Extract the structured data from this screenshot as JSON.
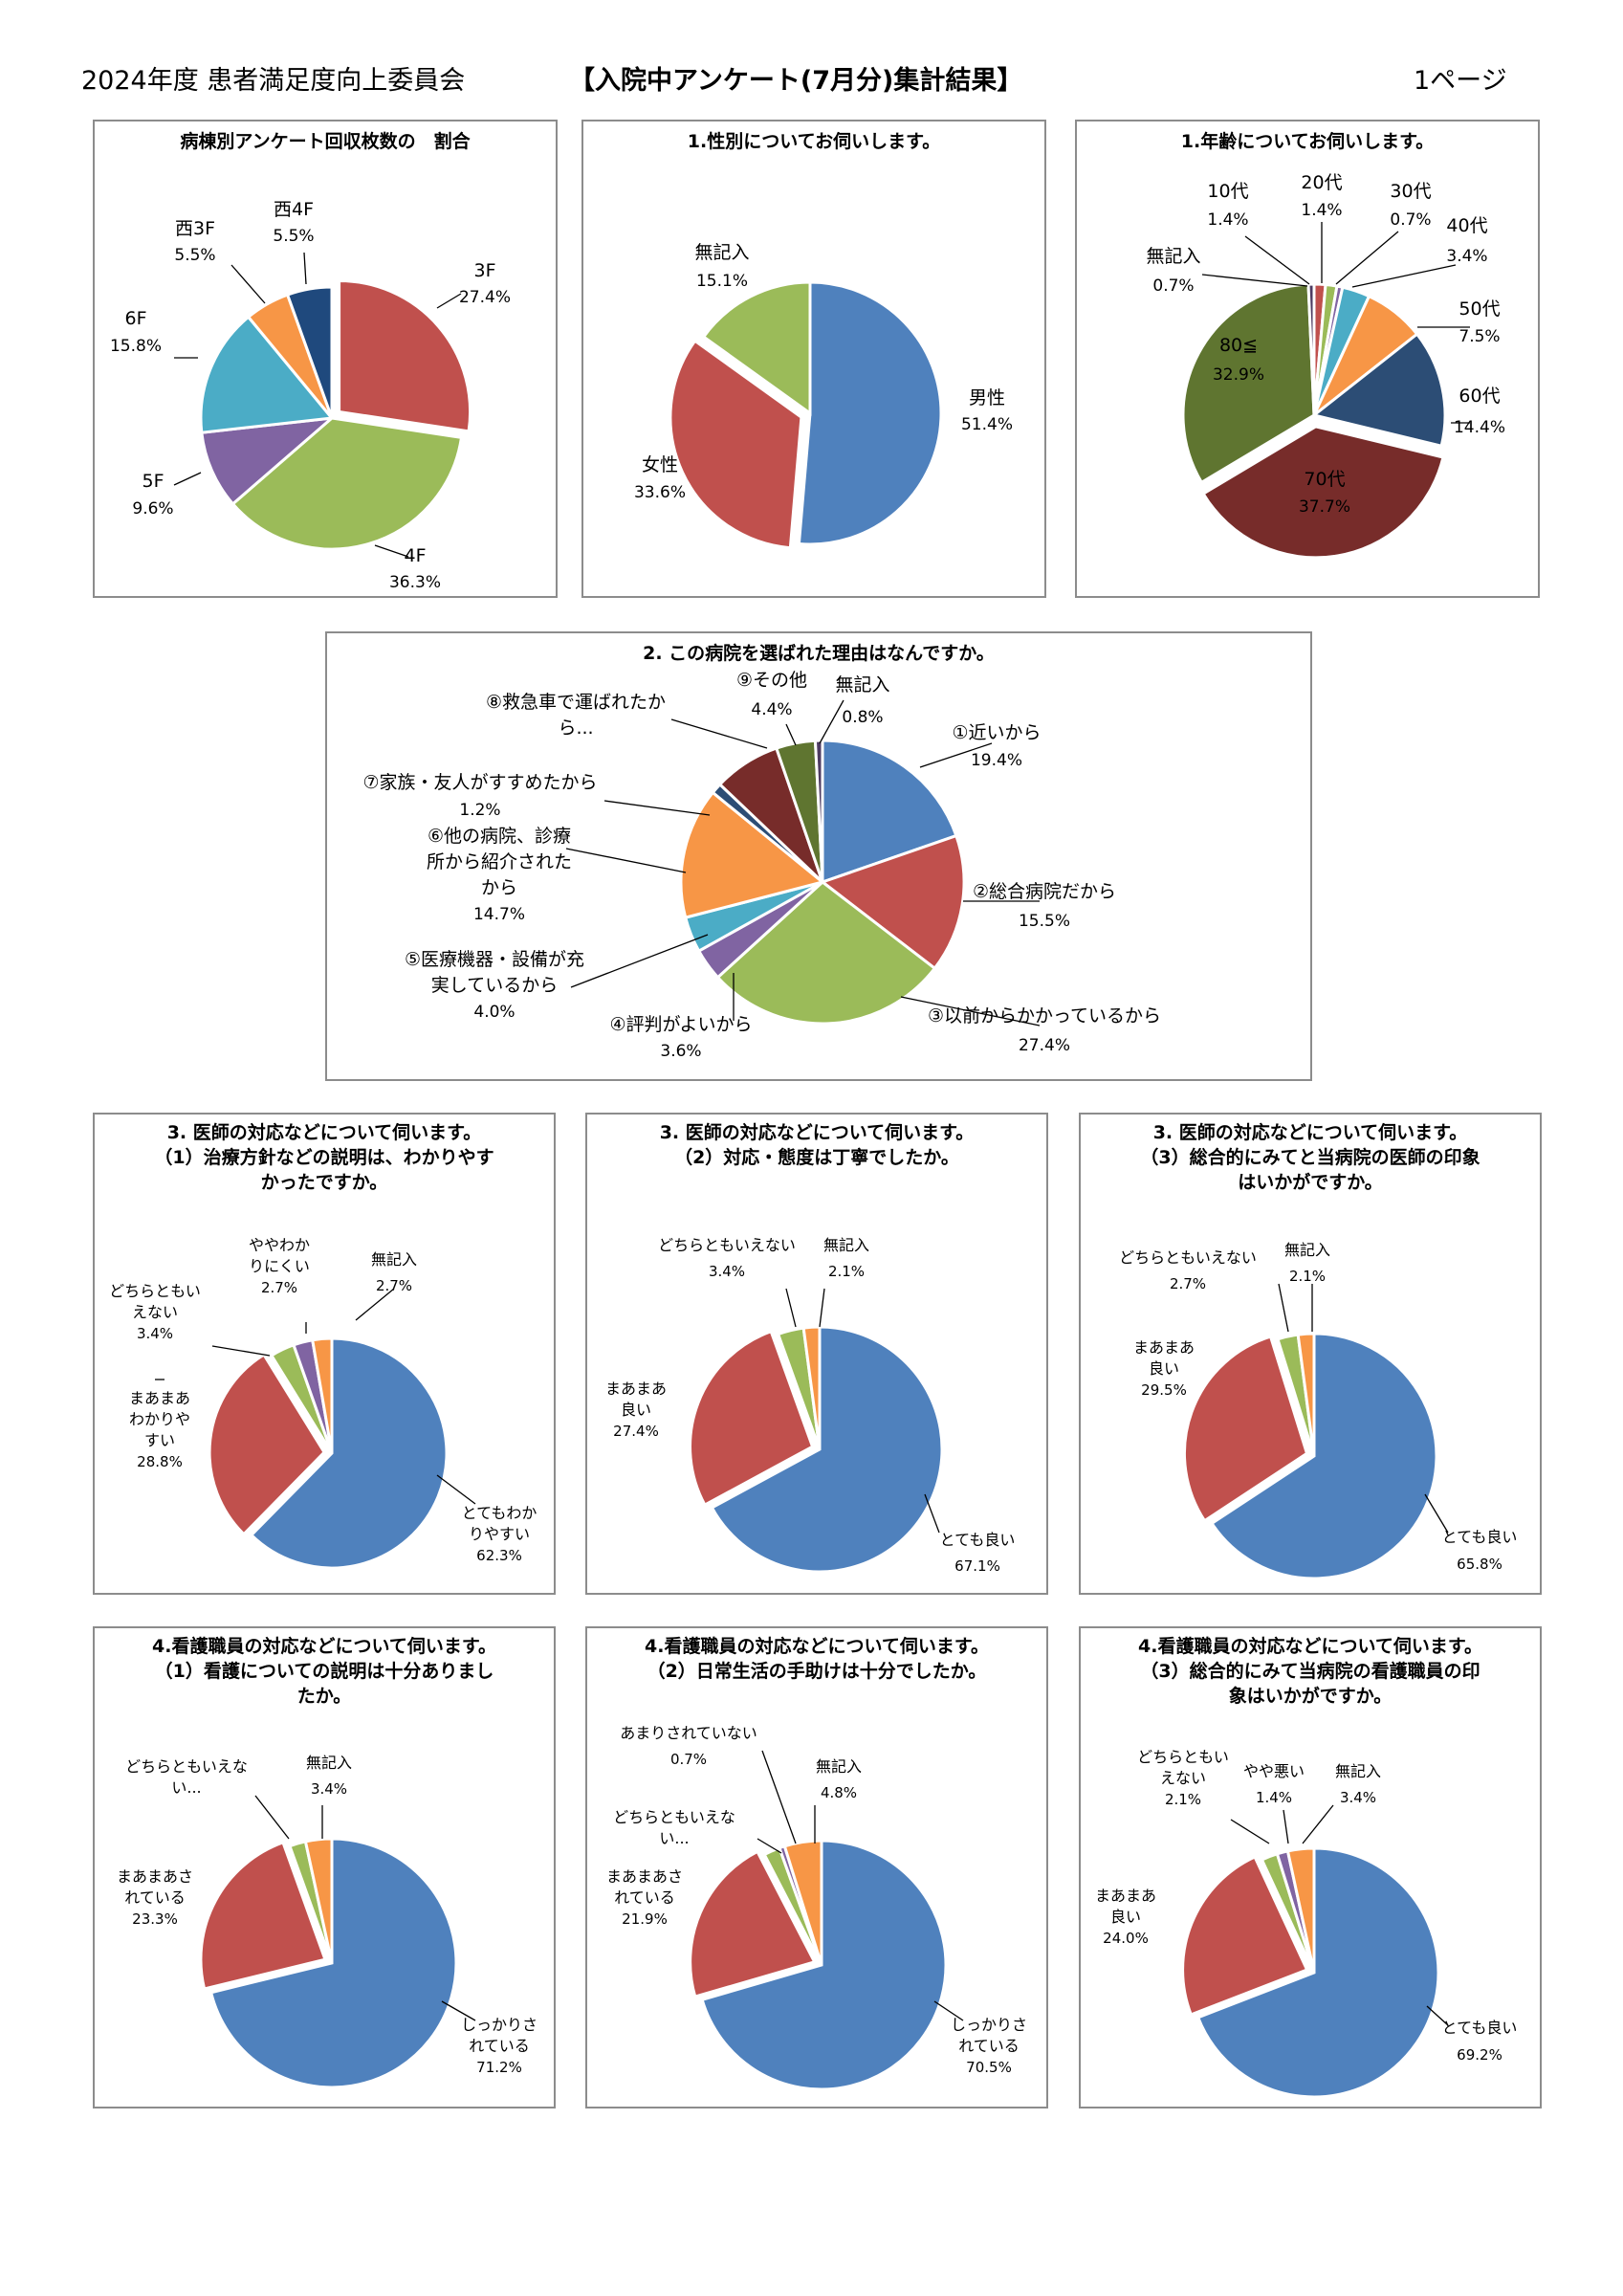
{
  "header": {
    "left": "2024年度 患者満足度向上委員会",
    "center": "【入院中アンケート(7月分)集計結果】",
    "right": "1ページ"
  },
  "chart_data": [
    {
      "id": "ward",
      "type": "pie",
      "title": "病棟別アンケート回収枚数の　割合",
      "slices": [
        {
          "label": "3F",
          "value": 27.4,
          "pct": "27.4%",
          "color": "#c0504d"
        },
        {
          "label": "4F",
          "value": 36.3,
          "pct": "36.3%",
          "color": "#9bbb59"
        },
        {
          "label": "5F",
          "value": 9.6,
          "pct": "9.6%",
          "color": "#8064a2"
        },
        {
          "label": "6F",
          "value": 15.8,
          "pct": "15.8%",
          "color": "#4bacc6"
        },
        {
          "label": "西3F",
          "value": 5.5,
          "pct": "5.5%",
          "color": "#f79646"
        },
        {
          "label": "西4F",
          "value": 5.5,
          "pct": "5.5%",
          "color": "#1f497d"
        }
      ]
    },
    {
      "id": "gender",
      "type": "pie",
      "title": "1.性別についてお伺いします。",
      "slices": [
        {
          "label": "男性",
          "value": 51.4,
          "pct": "51.4%",
          "color": "#4f81bd"
        },
        {
          "label": "女性",
          "value": 33.6,
          "pct": "33.6%",
          "color": "#c0504d"
        },
        {
          "label": "無記入",
          "value": 15.1,
          "pct": "15.1%",
          "color": "#9bbb59"
        }
      ]
    },
    {
      "id": "age",
      "type": "pie",
      "title": "1.年齢についてお伺いします。",
      "slices": [
        {
          "label": "10代",
          "value": 1.4,
          "pct": "1.4%",
          "color": "#c0504d"
        },
        {
          "label": "20代",
          "value": 1.4,
          "pct": "1.4%",
          "color": "#9bbb59"
        },
        {
          "label": "30代",
          "value": 0.7,
          "pct": "0.7%",
          "color": "#8064a2"
        },
        {
          "label": "40代",
          "value": 3.4,
          "pct": "3.4%",
          "color": "#4bacc6"
        },
        {
          "label": "50代",
          "value": 7.5,
          "pct": "7.5%",
          "color": "#f79646"
        },
        {
          "label": "60代",
          "value": 14.4,
          "pct": "14.4%",
          "color": "#2c4d75"
        },
        {
          "label": "70代",
          "value": 37.7,
          "pct": "37.7%",
          "color": "#772c2a"
        },
        {
          "label": "80≦",
          "value": 32.9,
          "pct": "32.9%",
          "color": "#5f7530"
        },
        {
          "label": "無記入",
          "value": 0.7,
          "pct": "0.7%",
          "color": "#4d3b62"
        }
      ]
    },
    {
      "id": "reason",
      "type": "pie",
      "title": "2. この病院を選ばれた理由はなんですか。",
      "slices": [
        {
          "label": "①近いから",
          "value": 19.4,
          "pct": "19.4%",
          "color": "#4f81bd"
        },
        {
          "label": "②総合病院だから",
          "value": 15.5,
          "pct": "15.5%",
          "color": "#c0504d"
        },
        {
          "label": "③以前からかかっているから",
          "value": 27.4,
          "pct": "27.4%",
          "color": "#9bbb59"
        },
        {
          "label": "④評判がよいから",
          "value": 3.6,
          "pct": "3.6%",
          "color": "#8064a2"
        },
        {
          "label": "⑤医療機器・設備が充実しているから",
          "value": 4.0,
          "pct": "4.0%",
          "color": "#4bacc6"
        },
        {
          "label": "⑥他の病院、診療所から紹介されたから",
          "value": 14.7,
          "pct": "14.7%",
          "color": "#f79646"
        },
        {
          "label": "⑦家族・友人がすすめたから",
          "value": 1.2,
          "pct": "1.2%",
          "color": "#2c4d75"
        },
        {
          "label": "⑧救急車で運ばれたから...",
          "value": 7.5,
          "pct": "",
          "color": "#772c2a"
        },
        {
          "label": "⑨その他",
          "value": 4.4,
          "pct": "4.4%",
          "color": "#5f7530"
        },
        {
          "label": "無記入",
          "value": 0.8,
          "pct": "0.8%",
          "color": "#4d3b62"
        }
      ]
    },
    {
      "id": "doc1",
      "type": "pie",
      "title": "3. 医師の対応などについて伺います。\n（1）治療方針などの説明は、わかりやすかったですか。",
      "slices": [
        {
          "label": "とてもわかりやすい",
          "value": 62.3,
          "pct": "62.3%",
          "color": "#4f81bd"
        },
        {
          "label": "まあまあわかりやすい",
          "value": 28.8,
          "pct": "28.8%",
          "color": "#c0504d"
        },
        {
          "label": "どちらともいえない",
          "value": 3.4,
          "pct": "3.4%",
          "color": "#9bbb59"
        },
        {
          "label": "ややわかりにくい",
          "value": 2.7,
          "pct": "2.7%",
          "color": "#8064a2"
        },
        {
          "label": "無記入",
          "value": 2.7,
          "pct": "2.7%",
          "color": "#f79646"
        }
      ]
    },
    {
      "id": "doc2",
      "type": "pie",
      "title": "3. 医師の対応などについて伺います。\n（2）対応・態度は丁寧でしたか。",
      "slices": [
        {
          "label": "とても良い",
          "value": 67.1,
          "pct": "67.1%",
          "color": "#4f81bd"
        },
        {
          "label": "まあまあ良い",
          "value": 27.4,
          "pct": "27.4%",
          "color": "#c0504d"
        },
        {
          "label": "どちらともいえない",
          "value": 3.4,
          "pct": "3.4%",
          "color": "#9bbb59"
        },
        {
          "label": "無記入",
          "value": 2.1,
          "pct": "2.1%",
          "color": "#f79646"
        }
      ]
    },
    {
      "id": "doc3",
      "type": "pie",
      "title": "3. 医師の対応などについて伺います。\n（3）総合的にみてと当病院の医師の印象はいかがですか。",
      "slices": [
        {
          "label": "とても良い",
          "value": 65.8,
          "pct": "65.8%",
          "color": "#4f81bd"
        },
        {
          "label": "まあまあ良い",
          "value": 29.5,
          "pct": "29.5%",
          "color": "#c0504d"
        },
        {
          "label": "どちらともいえない",
          "value": 2.7,
          "pct": "2.7%",
          "color": "#9bbb59"
        },
        {
          "label": "無記入",
          "value": 2.1,
          "pct": "2.1%",
          "color": "#f79646"
        }
      ]
    },
    {
      "id": "nurse1",
      "type": "pie",
      "title": "4.看護職員の対応などについて伺います。\n（1）看護についての説明は十分ありましたか。",
      "slices": [
        {
          "label": "しっかりされている",
          "value": 71.2,
          "pct": "71.2%",
          "color": "#4f81bd"
        },
        {
          "label": "まあまあされている",
          "value": 23.3,
          "pct": "23.3%",
          "color": "#c0504d"
        },
        {
          "label": "どちらともいえない...",
          "value": 2.1,
          "pct": "",
          "color": "#9bbb59"
        },
        {
          "label": "無記入",
          "value": 3.4,
          "pct": "3.4%",
          "color": "#f79646"
        }
      ]
    },
    {
      "id": "nurse2",
      "type": "pie",
      "title": "4.看護職員の対応などについて伺います。\n（2）日常生活の手助けは十分でしたか。",
      "slices": [
        {
          "label": "しっかりされている",
          "value": 70.5,
          "pct": "70.5%",
          "color": "#4f81bd"
        },
        {
          "label": "まあまあされている",
          "value": 21.9,
          "pct": "21.9%",
          "color": "#c0504d"
        },
        {
          "label": "どちらともいえない...",
          "value": 2.1,
          "pct": "",
          "color": "#9bbb59"
        },
        {
          "label": "あまりされていない",
          "value": 0.7,
          "pct": "0.7%",
          "color": "#8064a2"
        },
        {
          "label": "無記入",
          "value": 4.8,
          "pct": "4.8%",
          "color": "#f79646"
        }
      ]
    },
    {
      "id": "nurse3",
      "type": "pie",
      "title": "4.看護職員の対応などについて伺います。\n（3）総合的にみて当病院の看護職員の印象はいかがですか。",
      "slices": [
        {
          "label": "とても良い",
          "value": 69.2,
          "pct": "69.2%",
          "color": "#4f81bd"
        },
        {
          "label": "まあまあ良い",
          "value": 24.0,
          "pct": "24.0%",
          "color": "#c0504d"
        },
        {
          "label": "どちらともいえない",
          "value": 2.1,
          "pct": "2.1%",
          "color": "#9bbb59"
        },
        {
          "label": "やや悪い",
          "value": 1.4,
          "pct": "1.4%",
          "color": "#8064a2"
        },
        {
          "label": "無記入",
          "value": 3.4,
          "pct": "3.4%",
          "color": "#f79646"
        }
      ]
    }
  ]
}
